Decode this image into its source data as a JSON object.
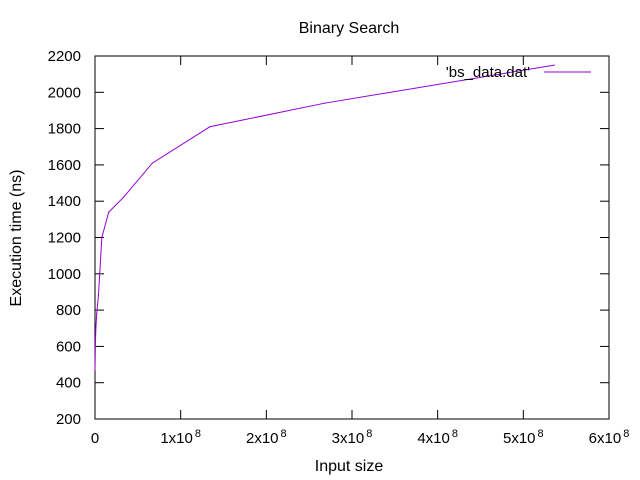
{
  "chart_data": {
    "type": "line",
    "title": "Binary Search",
    "xlabel": "Input size",
    "ylabel": "Execution time (ns)",
    "xlim": [
      0,
      600000000
    ],
    "ylim": [
      200,
      2200
    ],
    "x_ticks": [
      {
        "value": 0,
        "base": "0",
        "sup": ""
      },
      {
        "value": 100000000,
        "base": "1x10",
        "sup": "8"
      },
      {
        "value": 200000000,
        "base": "2x10",
        "sup": "8"
      },
      {
        "value": 300000000,
        "base": "3x10",
        "sup": "8"
      },
      {
        "value": 400000000,
        "base": "4x10",
        "sup": "8"
      },
      {
        "value": 500000000,
        "base": "5x10",
        "sup": "8"
      },
      {
        "value": 600000000,
        "base": "6x10",
        "sup": "8"
      }
    ],
    "y_ticks": [
      200,
      400,
      600,
      800,
      1000,
      1200,
      1400,
      1600,
      1800,
      2000,
      2200
    ],
    "legend_position": "top-right",
    "grid": false,
    "series": [
      {
        "name": "'bs_data.dat'",
        "color": "#9400d3",
        "points": [
          [
            0,
            470
          ],
          [
            500000,
            620
          ],
          [
            1000000,
            700
          ],
          [
            2000000,
            780
          ],
          [
            4000000,
            880
          ],
          [
            8000000,
            1200
          ],
          [
            16000000,
            1340
          ],
          [
            33000000,
            1420
          ],
          [
            67000000,
            1610
          ],
          [
            134000000,
            1810
          ],
          [
            268000000,
            1940
          ],
          [
            536000000,
            2150
          ]
        ]
      }
    ]
  }
}
